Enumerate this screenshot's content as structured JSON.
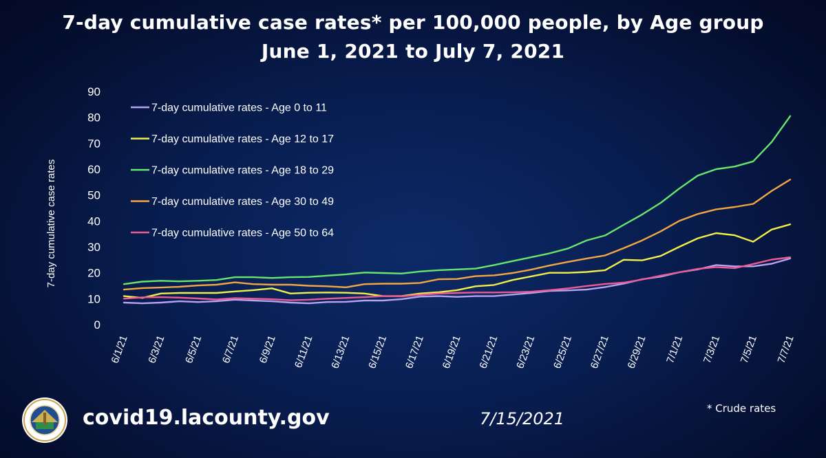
{
  "header": {
    "title_line1": "7-day cumulative case rates* per 100,000 people, by Age group",
    "title_line2": "June 1, 2021 to July 7, 2021"
  },
  "footer": {
    "url": "covid19.lacounty.gov",
    "date": "7/15/2021",
    "footnote": "* Crude rates",
    "seal_text_top": "COUNTY OF LOS ANGELES",
    "seal_text_bottom": "CALIFORNIA"
  },
  "chart_data": {
    "type": "line",
    "title": "7-day cumulative case rates* per 100,000 people, by Age group",
    "subtitle": "June 1, 2021 to July 7, 2021",
    "ylabel": "7-day cumulative case rates",
    "xlabel": "",
    "ylim": [
      0,
      90
    ],
    "yticks": [
      0,
      10,
      20,
      30,
      40,
      50,
      60,
      70,
      80,
      90
    ],
    "grid": false,
    "legend_position": "top-left",
    "x": [
      "6/1/21",
      "6/2/21",
      "6/3/21",
      "6/4/21",
      "6/5/21",
      "6/6/21",
      "6/7/21",
      "6/8/21",
      "6/9/21",
      "6/10/21",
      "6/11/21",
      "6/12/21",
      "6/13/21",
      "6/14/21",
      "6/15/21",
      "6/16/21",
      "6/17/21",
      "6/18/21",
      "6/19/21",
      "6/20/21",
      "6/21/21",
      "6/22/21",
      "6/23/21",
      "6/24/21",
      "6/25/21",
      "6/26/21",
      "6/27/21",
      "6/28/21",
      "6/29/21",
      "6/30/21",
      "7/1/21",
      "7/2/21",
      "7/3/21",
      "7/4/21",
      "7/5/21",
      "7/6/21",
      "7/7/21"
    ],
    "x_tick_labels": [
      "6/1/21",
      "6/3/21",
      "6/5/21",
      "6/7/21",
      "6/9/21",
      "6/11/21",
      "6/13/21",
      "6/15/21",
      "6/17/21",
      "6/19/21",
      "6/21/21",
      "6/23/21",
      "6/25/21",
      "6/27/21",
      "6/29/21",
      "7/1/21",
      "7/3/21",
      "7/5/21",
      "7/7/21"
    ],
    "series": [
      {
        "name": "7-day cumulative rates - Age 0 to 11",
        "color": "#b7a3f0",
        "values": [
          8.5,
          8.2,
          8.5,
          9.0,
          8.7,
          9.0,
          9.6,
          9.3,
          9.0,
          8.5,
          8.2,
          8.7,
          8.8,
          9.3,
          9.3,
          9.8,
          10.8,
          11.0,
          10.7,
          11.0,
          11.0,
          11.6,
          12.2,
          13.0,
          13.2,
          13.5,
          14.5,
          15.8,
          17.5,
          18.5,
          20.2,
          21.3,
          23.0,
          22.5,
          22.5,
          23.5,
          25.5
        ]
      },
      {
        "name": "7-day cumulative rates - Age 12 to 17",
        "color": "#f2ef49",
        "values": [
          11.0,
          10.3,
          12.0,
          12.2,
          12.2,
          12.2,
          12.8,
          13.3,
          14.0,
          12.0,
          12.3,
          12.4,
          12.3,
          12.0,
          11.0,
          11.0,
          12.0,
          12.5,
          13.3,
          14.8,
          15.3,
          17.2,
          18.6,
          20.0,
          20.0,
          20.3,
          21.0,
          25.0,
          24.8,
          26.5,
          30.0,
          33.3,
          35.3,
          34.5,
          32.0,
          36.7,
          38.7
        ]
      },
      {
        "name": "7-day cumulative rates - Age 18 to 29",
        "color": "#69e66c",
        "values": [
          15.6,
          16.6,
          16.9,
          16.7,
          16.9,
          17.2,
          18.3,
          18.3,
          18.0,
          18.3,
          18.4,
          18.9,
          19.4,
          20.1,
          19.9,
          19.7,
          20.5,
          21.0,
          21.3,
          21.6,
          23.0,
          24.5,
          26.0,
          27.5,
          29.4,
          32.5,
          34.4,
          38.5,
          42.5,
          47.0,
          52.5,
          57.5,
          60.0,
          61.0,
          63.0,
          70.5,
          80.5
        ]
      },
      {
        "name": "7-day cumulative rates - Age 30 to 49",
        "color": "#f3a742",
        "values": [
          13.5,
          14.1,
          14.3,
          14.6,
          15.1,
          15.4,
          16.3,
          15.6,
          15.4,
          15.4,
          15.0,
          14.8,
          14.4,
          15.6,
          15.8,
          15.8,
          16.1,
          17.5,
          17.6,
          18.7,
          19.0,
          19.9,
          21.2,
          22.8,
          24.2,
          25.5,
          26.7,
          29.5,
          32.5,
          36.0,
          40.0,
          42.7,
          44.5,
          45.4,
          46.6,
          51.6,
          56.0
        ]
      },
      {
        "name": "7-day cumulative rates - Age 50 to 64",
        "color": "#ee5b93",
        "values": [
          10.0,
          10.5,
          10.6,
          10.4,
          10.1,
          9.7,
          10.2,
          10.0,
          9.8,
          9.4,
          9.6,
          10.0,
          10.3,
          10.6,
          11.0,
          10.9,
          11.5,
          12.0,
          12.2,
          12.4,
          12.4,
          12.5,
          12.7,
          13.3,
          14.0,
          14.9,
          15.7,
          16.2,
          17.4,
          18.9,
          20.2,
          21.5,
          22.2,
          21.8,
          23.4,
          25.1,
          26.0
        ]
      }
    ]
  }
}
